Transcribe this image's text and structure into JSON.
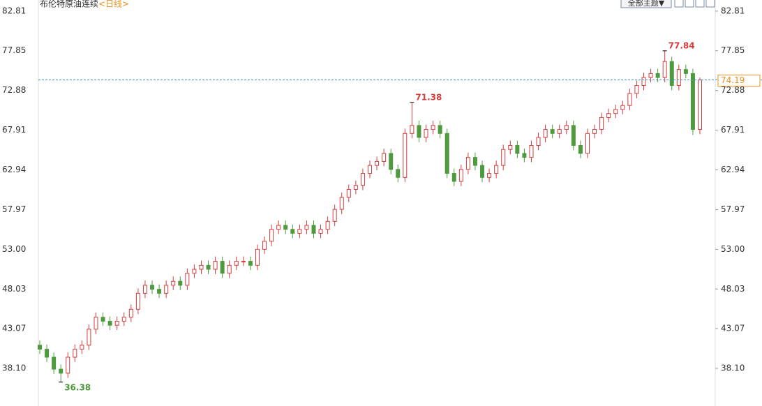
{
  "chart_data": {
    "type": "candlestick",
    "title": "布伦特原油连续",
    "period": "<日线>",
    "theme_button": "全部主题▼",
    "up_color": "#d53b3b",
    "down_color": "#4f9a3e",
    "grid": false,
    "ylim": [
      33.39,
      84.2
    ],
    "yticks": [
      82.81,
      77.85,
      72.88,
      67.91,
      62.94,
      57.97,
      {
        "value": 53,
        "label": "53.00"
      },
      48.03,
      43.07,
      {
        "value": 38.1,
        "label": "38.10"
      }
    ],
    "open": [
      41.0,
      40.5,
      39.5,
      38.0,
      37.5,
      39.5,
      40.5,
      41.0,
      43.0,
      44.5,
      44.0,
      43.5,
      44.0,
      44.5,
      45.5,
      47.5,
      48.5,
      48.0,
      47.5,
      48.5,
      49.0,
      48.5,
      50.0,
      50.5,
      51.0,
      50.5,
      51.5,
      50.0,
      51.0,
      51.5,
      51.5,
      51.0,
      53.0,
      54.0,
      55.5,
      56.0,
      55.5,
      55.0,
      55.5,
      56.0,
      55.0,
      55.5,
      56.5,
      58.0,
      59.5,
      60.5,
      61.0,
      62.5,
      63.5,
      64.0,
      65.0,
      63.0,
      62.0,
      67.5,
      68.5,
      67.0,
      68.0,
      68.5,
      67.5,
      62.5,
      61.5,
      63.0,
      64.5,
      63.5,
      62.0,
      62.5,
      63.5,
      65.5,
      66.0,
      65.0,
      64.5,
      66.0,
      67.0,
      68.0,
      67.5,
      68.0,
      68.5,
      66.0,
      65.0,
      67.5,
      68.0,
      69.5,
      70.0,
      70.5,
      71.0,
      72.5,
      73.5,
      74.5,
      75.0,
      74.5,
      76.5,
      73.5,
      75.5,
      75.0,
      68.0
    ],
    "high": [
      41.6,
      41.1,
      40.1,
      38.6,
      40.1,
      41.1,
      41.6,
      43.6,
      45.1,
      45.1,
      44.6,
      44.6,
      45.1,
      46.1,
      48.1,
      49.1,
      49.1,
      48.6,
      49.1,
      49.6,
      49.6,
      50.6,
      51.1,
      51.6,
      51.6,
      52.1,
      52.1,
      51.6,
      52.1,
      52.1,
      52.1,
      53.6,
      54.6,
      56.1,
      56.6,
      56.6,
      56.1,
      56.1,
      56.6,
      56.6,
      56.1,
      57.1,
      58.6,
      60.1,
      61.1,
      61.6,
      63.1,
      64.1,
      64.6,
      65.6,
      65.6,
      63.6,
      68.1,
      71.38,
      69.1,
      68.6,
      69.1,
      69.1,
      68.1,
      63.1,
      63.6,
      65.1,
      65.1,
      64.1,
      63.1,
      64.1,
      66.1,
      66.6,
      66.6,
      65.6,
      66.6,
      67.6,
      68.6,
      68.6,
      68.6,
      69.1,
      69.1,
      66.6,
      68.1,
      68.6,
      70.1,
      70.6,
      71.1,
      71.6,
      73.1,
      74.1,
      75.1,
      75.6,
      75.6,
      77.84,
      77.1,
      76.1,
      76.1,
      75.6,
      74.5
    ],
    "low": [
      39.9,
      38.9,
      37.4,
      36.38,
      36.9,
      38.9,
      39.9,
      40.4,
      42.4,
      43.4,
      42.9,
      42.9,
      43.4,
      43.9,
      44.9,
      46.9,
      47.4,
      46.9,
      46.9,
      47.9,
      47.9,
      47.9,
      49.4,
      49.9,
      49.9,
      49.9,
      49.4,
      49.4,
      50.4,
      50.9,
      50.4,
      50.4,
      52.4,
      53.4,
      54.9,
      54.9,
      54.4,
      54.4,
      54.9,
      54.4,
      54.4,
      54.9,
      55.9,
      57.4,
      58.9,
      59.9,
      60.4,
      61.9,
      62.9,
      63.4,
      62.4,
      61.4,
      61.4,
      66.9,
      66.4,
      66.4,
      67.4,
      66.9,
      61.9,
      60.9,
      60.9,
      62.4,
      62.9,
      61.4,
      61.4,
      61.9,
      62.9,
      64.9,
      64.4,
      63.9,
      63.9,
      65.4,
      66.4,
      66.9,
      66.9,
      67.4,
      65.4,
      64.4,
      64.4,
      66.9,
      67.4,
      68.9,
      69.4,
      69.9,
      70.4,
      71.9,
      72.9,
      73.9,
      73.9,
      73.9,
      72.9,
      72.9,
      74.4,
      67.3,
      67.4
    ],
    "close": [
      40.5,
      39.5,
      38.0,
      37.5,
      39.5,
      40.5,
      41.0,
      43.0,
      44.5,
      44.0,
      43.5,
      44.0,
      44.5,
      45.5,
      47.5,
      48.5,
      48.0,
      47.5,
      48.5,
      49.0,
      48.5,
      50.0,
      50.5,
      51.0,
      50.5,
      51.5,
      50.0,
      51.0,
      51.5,
      51.5,
      51.0,
      53.0,
      54.0,
      55.5,
      56.0,
      55.5,
      55.0,
      55.5,
      56.0,
      55.0,
      55.5,
      56.5,
      58.0,
      59.5,
      60.5,
      61.0,
      62.5,
      63.5,
      64.0,
      65.0,
      63.0,
      62.0,
      67.5,
      68.5,
      67.0,
      68.0,
      68.5,
      67.5,
      62.5,
      61.5,
      63.0,
      64.5,
      63.5,
      62.0,
      62.5,
      63.5,
      65.5,
      66.0,
      65.0,
      64.5,
      66.0,
      67.0,
      68.0,
      67.5,
      68.0,
      68.5,
      66.0,
      65.0,
      67.5,
      68.0,
      69.5,
      70.0,
      70.5,
      71.0,
      72.5,
      73.5,
      74.5,
      75.0,
      74.5,
      76.5,
      73.5,
      75.5,
      75.0,
      68.0,
      74.19
    ]
  }
}
